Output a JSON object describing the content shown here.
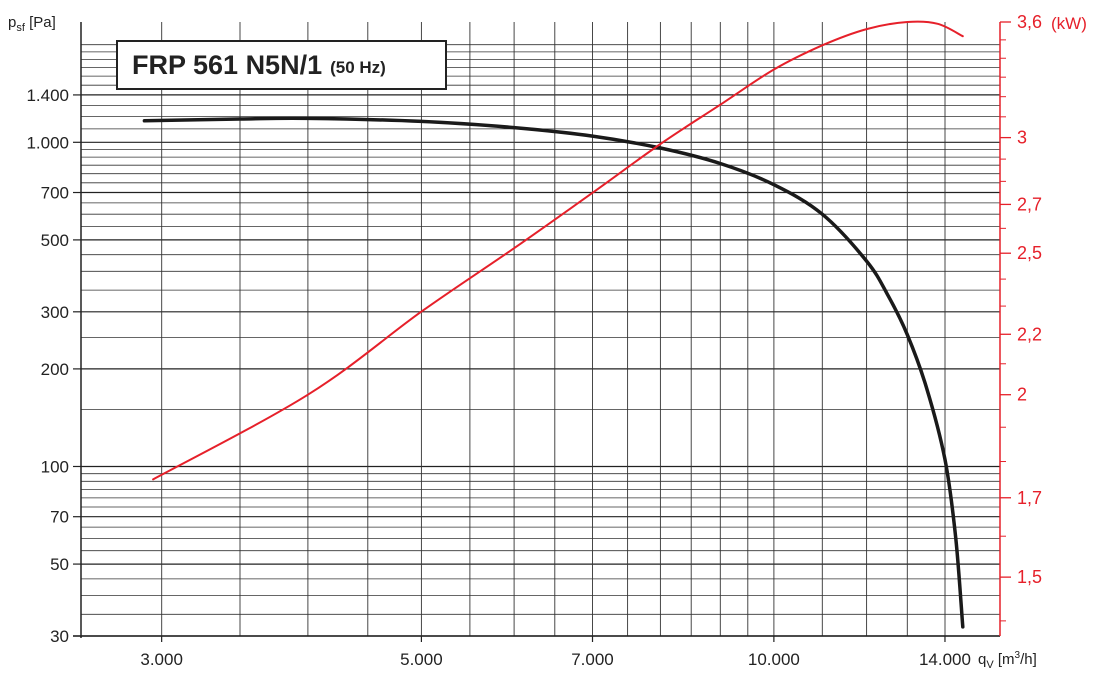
{
  "chart_title": "FRP 561 N5N/1",
  "chart_subtitle": "(50 Hz)",
  "chart_data": {
    "type": "line",
    "title": "FRP 561 N5N/1 (50 Hz)",
    "xlabel": "q",
    "xlabel_sub": "V",
    "xlabel_unit_pre": "[m",
    "xlabel_unit_sup": "3",
    "xlabel_unit_post": "/h]",
    "ylabel": "p",
    "ylabel_sub": "sf",
    "ylabel_unit": "[Pa]",
    "y2label": "(kW)",
    "x_scale": "log",
    "y_scale": "log",
    "y2_scale": "log",
    "xlim": [
      2560,
      15600
    ],
    "ylim": [
      30,
      2350
    ],
    "y2lim": [
      1.367,
      3.6
    ],
    "x_ticks": [
      {
        "value": 3000,
        "label": "3.000"
      },
      {
        "value": 5000,
        "label": "5.000"
      },
      {
        "value": 7000,
        "label": "7.000"
      },
      {
        "value": 10000,
        "label": "10.000"
      },
      {
        "value": 14000,
        "label": "14.000"
      }
    ],
    "y_ticks": [
      {
        "value": 30,
        "label": "30"
      },
      {
        "value": 50,
        "label": "50"
      },
      {
        "value": 70,
        "label": "70"
      },
      {
        "value": 100,
        "label": "100"
      },
      {
        "value": 200,
        "label": "200"
      },
      {
        "value": 300,
        "label": "300"
      },
      {
        "value": 500,
        "label": "500"
      },
      {
        "value": 700,
        "label": "700"
      },
      {
        "value": 1000,
        "label": "1.000"
      },
      {
        "value": 1400,
        "label": "1.400"
      }
    ],
    "y2_ticks": [
      {
        "value": 1.5,
        "label": "1,5"
      },
      {
        "value": 1.7,
        "label": "1,7"
      },
      {
        "value": 2,
        "label": "2"
      },
      {
        "value": 2.2,
        "label": "2,2"
      },
      {
        "value": 2.5,
        "label": "2,5"
      },
      {
        "value": 2.7,
        "label": "2,7"
      },
      {
        "value": 3,
        "label": "3"
      },
      {
        "value": 3.6,
        "label": "3,6"
      }
    ],
    "x_gridlines": [
      3000,
      3500,
      4000,
      4500,
      5000,
      5500,
      6000,
      6500,
      7000,
      7500,
      8000,
      8500,
      9000,
      9500,
      10000,
      11000,
      12000,
      13000,
      14000
    ],
    "y_gridlines": [
      30,
      35,
      40,
      45,
      50,
      55,
      60,
      65,
      70,
      75,
      80,
      85,
      90,
      95,
      100,
      150,
      200,
      250,
      300,
      350,
      400,
      450,
      500,
      550,
      600,
      650,
      700,
      750,
      800,
      850,
      900,
      950,
      1000,
      1100,
      1200,
      1300,
      1400,
      1500,
      1600,
      1700,
      1800,
      1900,
      2000
    ],
    "y_major_gridlines": [
      30,
      50,
      70,
      100,
      200,
      300,
      500,
      700,
      1000,
      1400
    ],
    "y2_minor_ticks": [
      1.4,
      1.6,
      1.8,
      1.9,
      2.1,
      2.3,
      2.4,
      2.6,
      2.8,
      2.9,
      3.1,
      3.2,
      3.3,
      3.4,
      3.5
    ],
    "grid": true,
    "legend": "none",
    "series": [
      {
        "axis": "left",
        "color": "#1a1a1a",
        "x": [
          2900,
          3500,
          4000,
          5000,
          6000,
          7000,
          8000,
          9000,
          10000,
          11000,
          12000,
          12500,
          13000,
          13500,
          14000,
          14300,
          14500
        ],
        "y": [
          1165,
          1180,
          1185,
          1160,
          1110,
          1045,
          960,
          860,
          740,
          600,
          430,
          340,
          255,
          175,
          105,
          60,
          32
        ]
      },
      {
        "axis": "right",
        "color": "#e6202a",
        "x": [
          2950,
          4000,
          5000,
          6000,
          7000,
          8000,
          9000,
          10000,
          11000,
          12000,
          13000,
          13800,
          14500
        ],
        "y": [
          1.75,
          2.0,
          2.28,
          2.52,
          2.75,
          2.97,
          3.16,
          3.34,
          3.47,
          3.56,
          3.6,
          3.59,
          3.52
        ]
      }
    ]
  }
}
